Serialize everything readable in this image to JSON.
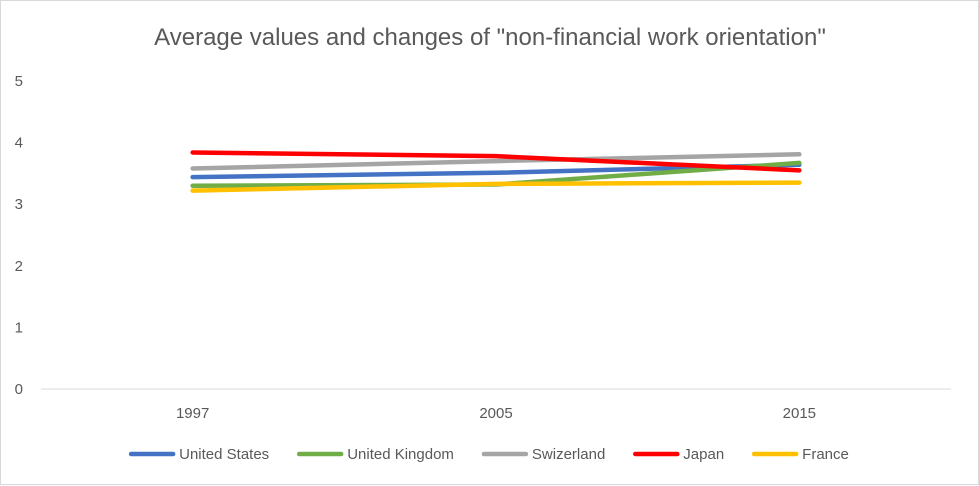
{
  "chart_data": {
    "type": "line",
    "title": "Average values and changes of \"non-financial work orientation\"",
    "xlabel": "",
    "ylabel": "",
    "categories": [
      "1997",
      "2005",
      "2015"
    ],
    "ylim": [
      0,
      5
    ],
    "yticks": [
      0,
      1,
      2,
      3,
      4,
      5
    ],
    "grid": false,
    "legend_position": "bottom",
    "series": [
      {
        "name": "United States",
        "color": "#4472c4",
        "values": [
          3.44,
          3.51,
          3.64
        ]
      },
      {
        "name": "United Kingdom",
        "color": "#70ad47",
        "values": [
          3.3,
          3.32,
          3.67
        ]
      },
      {
        "name": "Swizerland",
        "color": "#a5a5a5",
        "values": [
          3.58,
          3.7,
          3.81
        ]
      },
      {
        "name": "Japan",
        "color": "#ff0000",
        "values": [
          3.84,
          3.78,
          3.55
        ]
      },
      {
        "name": "France",
        "color": "#ffc000",
        "values": [
          3.22,
          3.33,
          3.35
        ]
      }
    ]
  }
}
